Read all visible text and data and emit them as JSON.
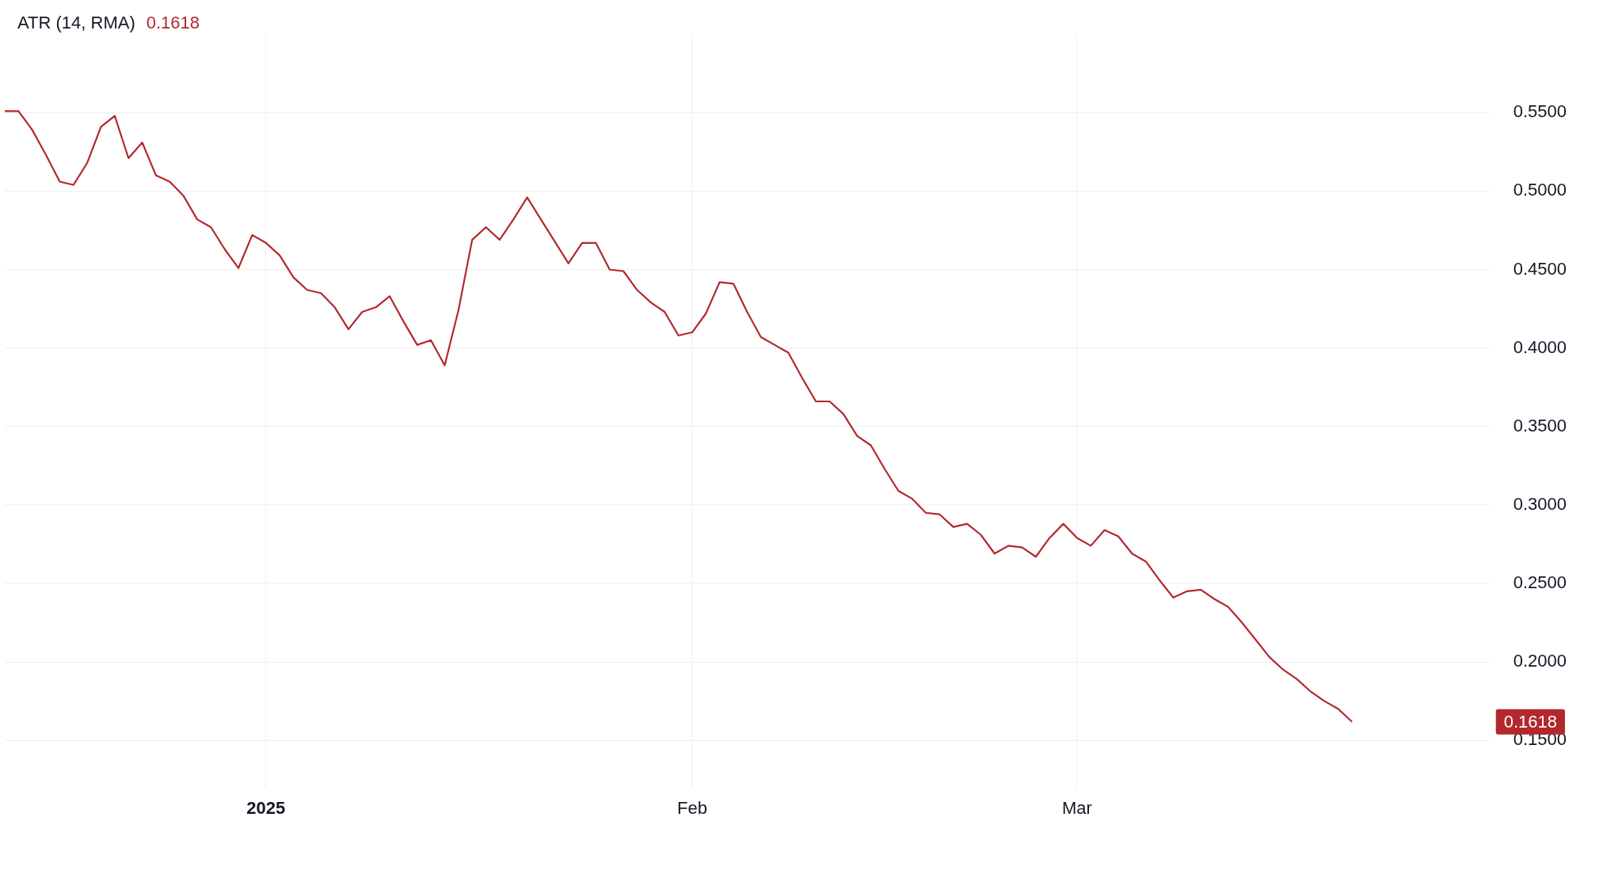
{
  "chart_data": {
    "type": "line",
    "x": [
      "2024-12-13",
      "2024-12-14",
      "2024-12-15",
      "2024-12-16",
      "2024-12-17",
      "2024-12-18",
      "2024-12-19",
      "2024-12-20",
      "2024-12-21",
      "2024-12-22",
      "2024-12-23",
      "2024-12-24",
      "2024-12-25",
      "2024-12-26",
      "2024-12-27",
      "2024-12-28",
      "2024-12-29",
      "2024-12-30",
      "2024-12-31",
      "2025-01-01",
      "2025-01-02",
      "2025-01-03",
      "2025-01-04",
      "2025-01-05",
      "2025-01-06",
      "2025-01-07",
      "2025-01-08",
      "2025-01-09",
      "2025-01-10",
      "2025-01-11",
      "2025-01-12",
      "2025-01-13",
      "2025-01-14",
      "2025-01-15",
      "2025-01-16",
      "2025-01-17",
      "2025-01-18",
      "2025-01-19",
      "2025-01-20",
      "2025-01-21",
      "2025-01-22",
      "2025-01-23",
      "2025-01-24",
      "2025-01-25",
      "2025-01-26",
      "2025-01-27",
      "2025-01-28",
      "2025-01-29",
      "2025-01-30",
      "2025-01-31",
      "2025-02-01",
      "2025-02-02",
      "2025-02-03",
      "2025-02-04",
      "2025-02-05",
      "2025-02-06",
      "2025-02-07",
      "2025-02-08",
      "2025-02-09",
      "2025-02-10",
      "2025-02-11",
      "2025-02-12",
      "2025-02-13",
      "2025-02-14",
      "2025-02-15",
      "2025-02-16",
      "2025-02-17",
      "2025-02-18",
      "2025-02-19",
      "2025-02-20",
      "2025-02-21",
      "2025-02-22",
      "2025-02-23",
      "2025-02-24",
      "2025-02-25",
      "2025-02-26",
      "2025-02-27",
      "2025-02-28",
      "2025-03-01",
      "2025-03-02",
      "2025-03-03",
      "2025-03-04",
      "2025-03-05",
      "2025-03-06",
      "2025-03-07",
      "2025-03-08",
      "2025-03-09",
      "2025-03-10",
      "2025-03-11",
      "2025-03-12",
      "2025-03-13",
      "2025-03-14",
      "2025-03-15",
      "2025-03-16",
      "2025-03-17",
      "2025-03-18",
      "2025-03-19",
      "2025-03-20",
      "2025-03-21"
    ],
    "series": [
      {
        "name": "ATR (14, RMA)",
        "color": "#b2282d",
        "values": [
          0.551,
          0.551,
          0.539,
          0.523,
          0.506,
          0.504,
          0.518,
          0.541,
          0.548,
          0.521,
          0.531,
          0.51,
          0.506,
          0.497,
          0.482,
          0.477,
          0.463,
          0.451,
          0.472,
          0.467,
          0.459,
          0.445,
          0.437,
          0.435,
          0.426,
          0.412,
          0.423,
          0.426,
          0.433,
          0.417,
          0.402,
          0.405,
          0.389,
          0.424,
          0.469,
          0.477,
          0.469,
          0.482,
          0.496,
          0.482,
          0.468,
          0.454,
          0.467,
          0.467,
          0.45,
          0.449,
          0.437,
          0.429,
          0.423,
          0.408,
          0.41,
          0.422,
          0.442,
          0.441,
          0.423,
          0.407,
          0.402,
          0.397,
          0.381,
          0.366,
          0.366,
          0.358,
          0.344,
          0.338,
          0.323,
          0.309,
          0.304,
          0.295,
          0.294,
          0.286,
          0.288,
          0.281,
          0.269,
          0.274,
          0.273,
          0.267,
          0.279,
          0.288,
          0.279,
          0.274,
          0.284,
          0.28,
          0.269,
          0.264,
          0.252,
          0.241,
          0.245,
          0.246,
          0.24,
          0.235,
          0.225,
          0.214,
          0.203,
          0.195,
          0.189,
          0.181,
          0.175,
          0.17,
          0.1618
        ]
      }
    ],
    "xlim": [
      "2024-12-13",
      "2025-03-31"
    ],
    "xticks": [
      {
        "value": "2025-01-01",
        "label": "2025"
      },
      {
        "value": "2025-02-01",
        "label": "Feb"
      },
      {
        "value": "2025-03-01",
        "label": "Mar"
      }
    ],
    "ylim": [
      0.12,
      0.6
    ],
    "yticks": [
      {
        "value": 0.15,
        "label": "0.1500"
      },
      {
        "value": 0.2,
        "label": "0.2000"
      },
      {
        "value": 0.25,
        "label": "0.2500"
      },
      {
        "value": 0.3,
        "label": "0.3000"
      },
      {
        "value": 0.35,
        "label": "0.3500"
      },
      {
        "value": 0.4,
        "label": "0.4000"
      },
      {
        "value": 0.45,
        "label": "0.4500"
      },
      {
        "value": 0.5,
        "label": "0.5000"
      },
      {
        "value": 0.55,
        "label": "0.5500"
      }
    ],
    "annotations": [
      "0.1618",
      "0.1618"
    ],
    "grid": true,
    "legend": "top left",
    "marker": "none",
    "line_style": "solid"
  }
}
